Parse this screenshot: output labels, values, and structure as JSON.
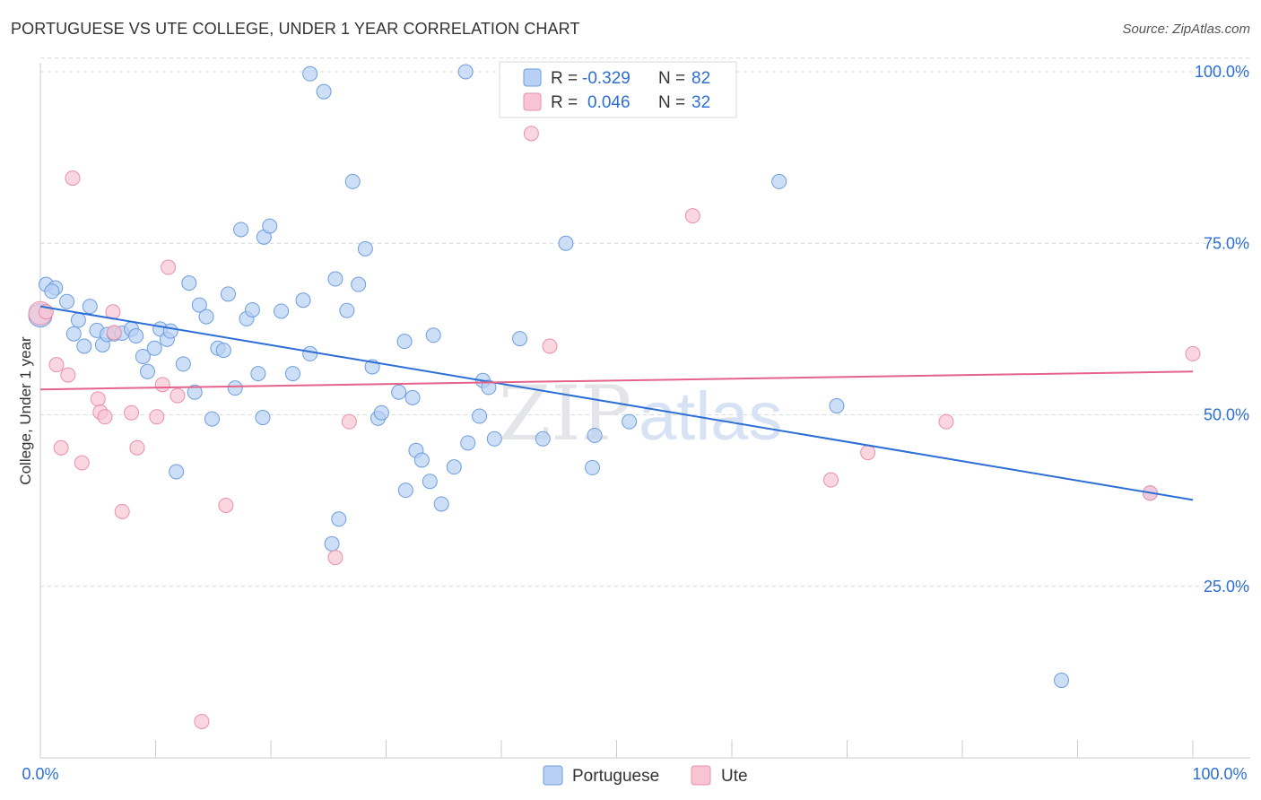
{
  "header": {
    "title": "PORTUGUESE VS UTE COLLEGE, UNDER 1 YEAR CORRELATION CHART",
    "source": "Source: ZipAtlas.com"
  },
  "watermark": {
    "zip": "ZIP",
    "atlas": "atlas"
  },
  "colors": {
    "blue_fill": "#b8d0f4",
    "blue_stroke": "#6d9ede",
    "blue_line": "#2b6fd6",
    "pink_fill": "#f8c4d4",
    "pink_stroke": "#ea8fac",
    "pink_line": "#e5638b",
    "value_text": "#2b6fd6",
    "grid": "#d5d9e0",
    "axis": "#c7cbd2"
  },
  "chart_data": {
    "type": "scatter",
    "xlabel": "",
    "ylabel": "College, Under 1 year",
    "xlim": [
      0,
      100
    ],
    "ylim": [
      0,
      100
    ],
    "x_tick_labels": [
      "0.0%",
      "100.0%"
    ],
    "y_tick_values": [
      25,
      50,
      75,
      100
    ],
    "y_tick_labels": [
      "25.0%",
      "50.0%",
      "75.0%",
      "100.0%"
    ],
    "grid": true,
    "legend_position": "top-center",
    "stats": [
      {
        "r_label": "R =",
        "r_value": "-0.329",
        "n_label": "N =",
        "n_value": "82"
      },
      {
        "r_label": "R =",
        "r_value": "0.046",
        "n_label": "N =",
        "n_value": "32"
      }
    ],
    "series": [
      {
        "name": "Portuguese",
        "trend": {
          "x0": 0,
          "y0": 65.8,
          "x1": 100,
          "y1": 37.6
        },
        "points": [
          [
            0.0,
            64.5
          ],
          [
            0.5,
            69.0
          ],
          [
            1.3,
            68.5
          ],
          [
            1.0,
            68.0
          ],
          [
            2.3,
            66.5
          ],
          [
            3.3,
            63.8
          ],
          [
            2.9,
            61.8
          ],
          [
            3.8,
            60.0
          ],
          [
            4.3,
            65.8
          ],
          [
            4.9,
            62.3
          ],
          [
            5.4,
            60.2
          ],
          [
            5.8,
            61.7
          ],
          [
            6.4,
            61.8
          ],
          [
            7.1,
            61.9
          ],
          [
            7.9,
            62.5
          ],
          [
            8.3,
            61.5
          ],
          [
            8.9,
            58.5
          ],
          [
            9.3,
            56.3
          ],
          [
            9.9,
            59.7
          ],
          [
            10.4,
            62.5
          ],
          [
            11.0,
            61.0
          ],
          [
            11.3,
            62.2
          ],
          [
            11.8,
            41.7
          ],
          [
            12.4,
            57.4
          ],
          [
            12.9,
            69.2
          ],
          [
            13.4,
            53.3
          ],
          [
            13.8,
            66.0
          ],
          [
            14.4,
            64.3
          ],
          [
            14.9,
            49.4
          ],
          [
            15.4,
            59.7
          ],
          [
            15.9,
            59.4
          ],
          [
            16.3,
            67.6
          ],
          [
            16.9,
            53.9
          ],
          [
            17.4,
            77.0
          ],
          [
            17.9,
            64.0
          ],
          [
            18.4,
            65.3
          ],
          [
            18.9,
            56.0
          ],
          [
            19.3,
            49.6
          ],
          [
            19.4,
            75.9
          ],
          [
            19.9,
            77.5
          ],
          [
            20.9,
            65.1
          ],
          [
            21.9,
            56.0
          ],
          [
            22.8,
            66.7
          ],
          [
            23.4,
            58.9
          ],
          [
            23.4,
            99.7
          ],
          [
            24.6,
            97.1
          ],
          [
            25.3,
            31.2
          ],
          [
            25.6,
            69.8
          ],
          [
            25.9,
            34.8
          ],
          [
            26.6,
            65.2
          ],
          [
            27.1,
            84.0
          ],
          [
            27.6,
            69.0
          ],
          [
            28.2,
            74.2
          ],
          [
            28.8,
            57.0
          ],
          [
            29.3,
            49.5
          ],
          [
            29.6,
            50.3
          ],
          [
            31.1,
            53.3
          ],
          [
            31.6,
            60.7
          ],
          [
            31.7,
            39.0
          ],
          [
            32.3,
            52.5
          ],
          [
            32.6,
            44.8
          ],
          [
            33.1,
            43.4
          ],
          [
            33.8,
            40.3
          ],
          [
            34.1,
            61.6
          ],
          [
            34.8,
            37.0
          ],
          [
            35.9,
            42.4
          ],
          [
            36.9,
            100.0
          ],
          [
            37.1,
            45.9
          ],
          [
            38.1,
            49.8
          ],
          [
            38.4,
            55.0
          ],
          [
            38.9,
            54.0
          ],
          [
            39.4,
            46.5
          ],
          [
            41.6,
            61.1
          ],
          [
            43.6,
            46.5
          ],
          [
            45.6,
            75.0
          ],
          [
            47.9,
            42.3
          ],
          [
            48.1,
            47.0
          ],
          [
            51.1,
            49.0
          ],
          [
            64.1,
            84.0
          ],
          [
            69.1,
            51.3
          ],
          [
            88.6,
            11.3
          ],
          [
            96.3,
            38.6
          ]
        ]
      },
      {
        "name": "Ute",
        "trend": {
          "x0": 0,
          "y0": 53.7,
          "x1": 100,
          "y1": 56.3
        },
        "points": [
          [
            0.0,
            64.8
          ],
          [
            0.5,
            65.0
          ],
          [
            1.4,
            57.3
          ],
          [
            1.8,
            45.2
          ],
          [
            2.4,
            55.8
          ],
          [
            2.8,
            84.5
          ],
          [
            3.6,
            43.0
          ],
          [
            5.0,
            52.3
          ],
          [
            5.2,
            50.4
          ],
          [
            5.6,
            49.7
          ],
          [
            6.3,
            65.0
          ],
          [
            6.4,
            62.0
          ],
          [
            7.1,
            35.9
          ],
          [
            7.9,
            50.3
          ],
          [
            8.4,
            45.2
          ],
          [
            10.1,
            49.7
          ],
          [
            10.6,
            54.4
          ],
          [
            11.1,
            71.5
          ],
          [
            11.9,
            52.8
          ],
          [
            14.0,
            5.3
          ],
          [
            16.1,
            36.8
          ],
          [
            25.6,
            29.2
          ],
          [
            26.8,
            49.0
          ],
          [
            42.6,
            91.0
          ],
          [
            44.2,
            60.0
          ],
          [
            54.6,
            100.0
          ],
          [
            56.6,
            79.0
          ],
          [
            68.6,
            40.5
          ],
          [
            71.8,
            44.5
          ],
          [
            78.6,
            49.0
          ],
          [
            96.3,
            38.6
          ],
          [
            100.0,
            58.9
          ]
        ]
      }
    ]
  }
}
